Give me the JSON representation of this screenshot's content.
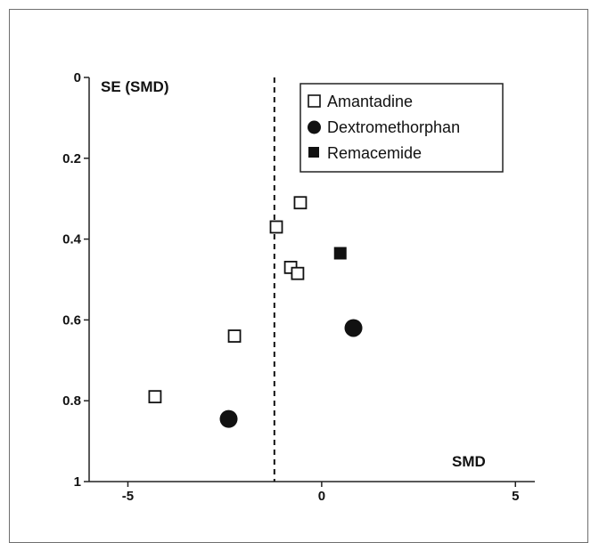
{
  "chart_data": {
    "type": "scatter",
    "xlabel": "SMD",
    "ylabel": "SE (SMD)",
    "xlim": [
      -6,
      5.5
    ],
    "ylim": [
      0,
      1
    ],
    "y_inverted": true,
    "x_ticks": [
      "-5",
      "0",
      "5"
    ],
    "x_tick_values": [
      -5,
      0,
      5
    ],
    "y_ticks": [
      "0",
      "0.2",
      "0.4",
      "0.6",
      "0.8",
      "1"
    ],
    "y_tick_values": [
      0,
      0.2,
      0.4,
      0.6,
      0.8,
      1
    ],
    "reference_line": {
      "x": -1.22,
      "style": "dashed"
    },
    "legend_position": "top-right",
    "series": [
      {
        "name": "Amantadine",
        "marker": "open-square",
        "color": "#111111",
        "points": [
          {
            "x": -0.55,
            "y": 0.31
          },
          {
            "x": -1.17,
            "y": 0.37
          },
          {
            "x": -0.8,
            "y": 0.47
          },
          {
            "x": -0.62,
            "y": 0.485
          },
          {
            "x": -2.25,
            "y": 0.64
          },
          {
            "x": -4.3,
            "y": 0.79
          }
        ]
      },
      {
        "name": "Dextromethorphan",
        "marker": "filled-circle",
        "color": "#111111",
        "points": [
          {
            "x": 0.82,
            "y": 0.62
          },
          {
            "x": -2.4,
            "y": 0.845
          }
        ]
      },
      {
        "name": "Remacemide",
        "marker": "filled-square",
        "color": "#111111",
        "points": [
          {
            "x": 0.48,
            "y": 0.435
          }
        ]
      }
    ]
  }
}
